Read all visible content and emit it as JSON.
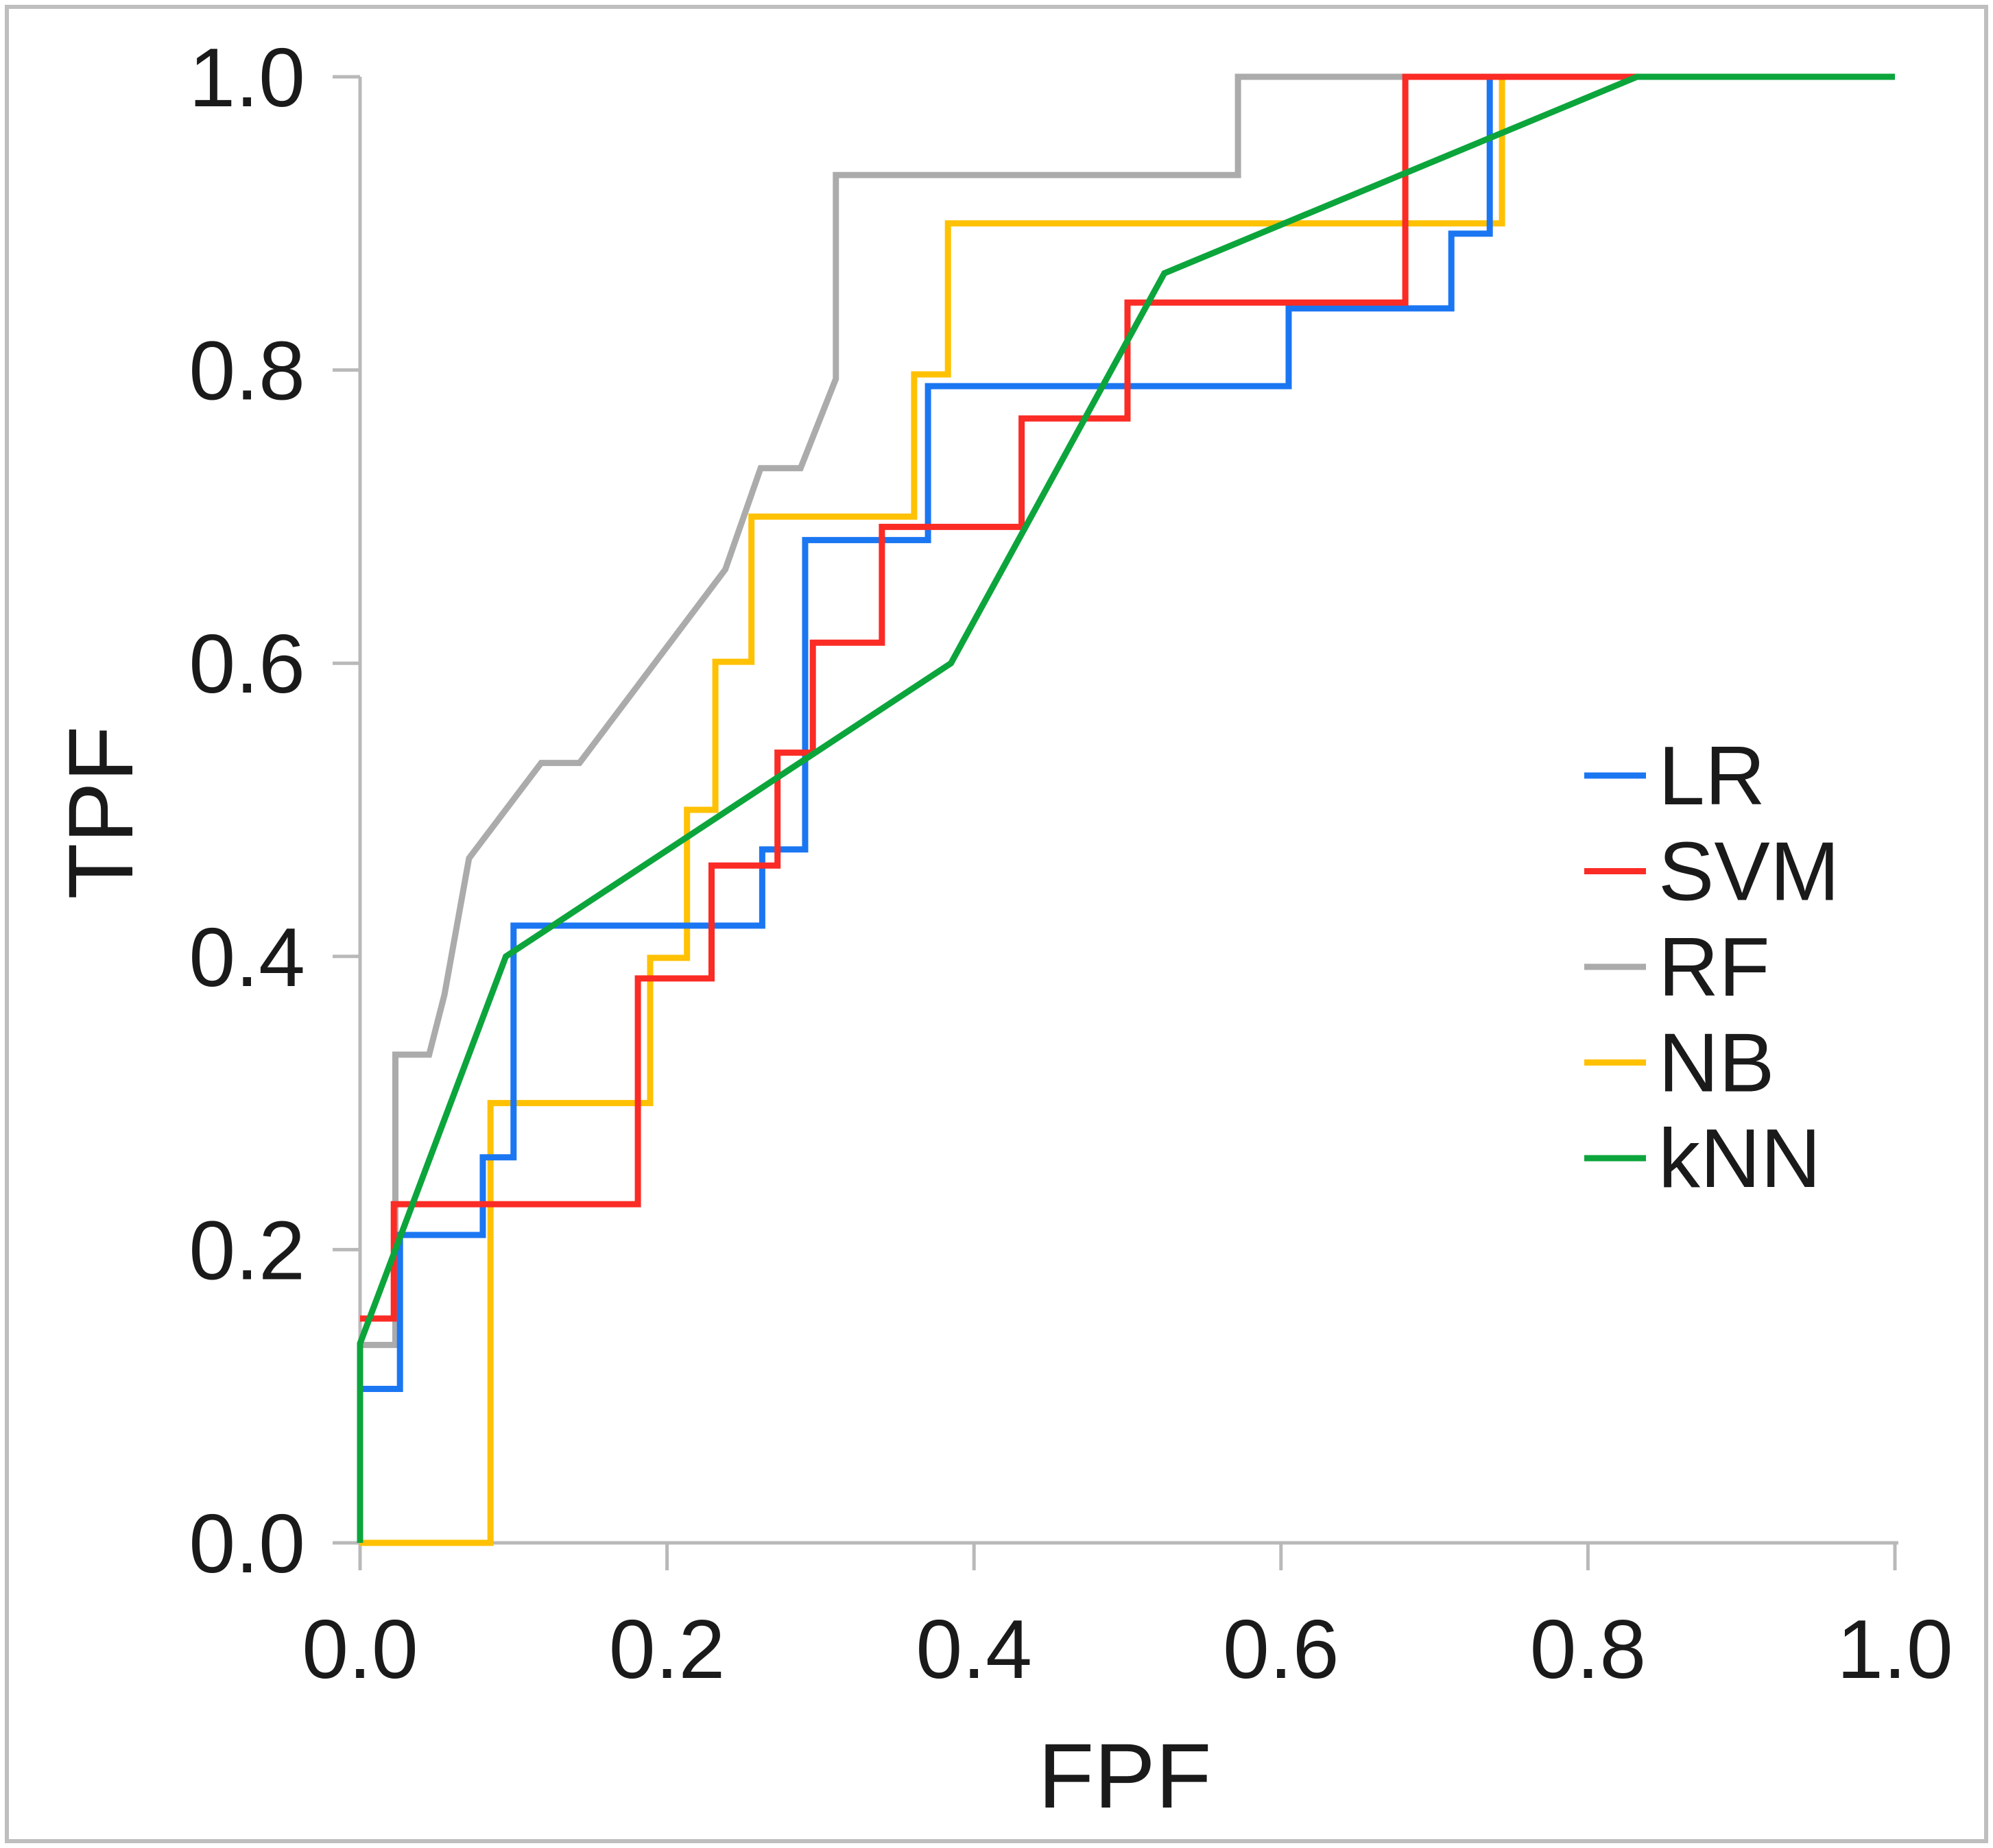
{
  "figure": {
    "background": "#ffffff",
    "frame_color": "#bfbfbf",
    "axis_color": "#b9b9b9",
    "text_color": "#1a1a1a"
  },
  "chart_data": {
    "type": "line",
    "title": "",
    "xlabel": "FPF",
    "ylabel": "TPF",
    "xlim": [
      0.0,
      1.0
    ],
    "ylim": [
      0.0,
      1.0
    ],
    "x_tick_labels": [
      "0.0",
      "0.2",
      "0.4",
      "0.6",
      "0.8",
      "1.0"
    ],
    "y_tick_labels": [
      "0.0",
      "0.2",
      "0.4",
      "0.6",
      "0.8",
      "1.0"
    ],
    "grid": false,
    "legend_position": "right-middle",
    "series": [
      {
        "name": "LR",
        "color": "#1b76f2",
        "points": [
          [
            0,
            0.105
          ],
          [
            0.026,
            0.105
          ],
          [
            0.026,
            0.21
          ],
          [
            0.08,
            0.21
          ],
          [
            0.08,
            0.263
          ],
          [
            0.1,
            0.263
          ],
          [
            0.1,
            0.421
          ],
          [
            0.262,
            0.421
          ],
          [
            0.262,
            0.473
          ],
          [
            0.29,
            0.473
          ],
          [
            0.29,
            0.684
          ],
          [
            0.37,
            0.684
          ],
          [
            0.37,
            0.789
          ],
          [
            0.605,
            0.789
          ],
          [
            0.605,
            0.842
          ],
          [
            0.711,
            0.842
          ],
          [
            0.711,
            0.893
          ],
          [
            0.736,
            0.893
          ],
          [
            0.736,
            1.0
          ],
          [
            1.0,
            1.0
          ]
        ]
      },
      {
        "name": "SVM",
        "color": "#fb2b25",
        "points": [
          [
            0,
            0.153
          ],
          [
            0.022,
            0.153
          ],
          [
            0.022,
            0.231
          ],
          [
            0.181,
            0.231
          ],
          [
            0.181,
            0.385
          ],
          [
            0.229,
            0.385
          ],
          [
            0.229,
            0.462
          ],
          [
            0.272,
            0.462
          ],
          [
            0.272,
            0.539
          ],
          [
            0.295,
            0.539
          ],
          [
            0.295,
            0.614
          ],
          [
            0.34,
            0.614
          ],
          [
            0.34,
            0.693
          ],
          [
            0.431,
            0.693
          ],
          [
            0.431,
            0.767
          ],
          [
            0.5,
            0.767
          ],
          [
            0.5,
            0.846
          ],
          [
            0.681,
            0.846
          ],
          [
            0.681,
            1.0
          ],
          [
            1.0,
            1.0
          ]
        ]
      },
      {
        "name": "RF",
        "color": "#ababab",
        "points": [
          [
            0,
            0.135
          ],
          [
            0.023,
            0.135
          ],
          [
            0.023,
            0.333
          ],
          [
            0.045,
            0.333
          ],
          [
            0.055,
            0.374
          ],
          [
            0.071,
            0.467
          ],
          [
            0.118,
            0.532
          ],
          [
            0.143,
            0.532
          ],
          [
            0.238,
            0.664
          ],
          [
            0.261,
            0.733
          ],
          [
            0.287,
            0.733
          ],
          [
            0.31,
            0.794
          ],
          [
            0.31,
            0.933
          ],
          [
            0.572,
            0.933
          ],
          [
            0.572,
            1.0
          ],
          [
            1.0,
            1.0
          ]
        ]
      },
      {
        "name": "NB",
        "color": "#ffc103",
        "points": [
          [
            0,
            0
          ],
          [
            0.085,
            0
          ],
          [
            0.085,
            0.3
          ],
          [
            0.189,
            0.3
          ],
          [
            0.189,
            0.399
          ],
          [
            0.213,
            0.399
          ],
          [
            0.213,
            0.5
          ],
          [
            0.2315,
            0.5
          ],
          [
            0.2315,
            0.601
          ],
          [
            0.255,
            0.601
          ],
          [
            0.255,
            0.7
          ],
          [
            0.361,
            0.7
          ],
          [
            0.361,
            0.797
          ],
          [
            0.383,
            0.797
          ],
          [
            0.383,
            0.9
          ],
          [
            0.744,
            0.9
          ],
          [
            0.744,
            1.0
          ],
          [
            1.0,
            1.0
          ]
        ]
      },
      {
        "name": "kNN",
        "color": "#0ca53c",
        "points": [
          [
            0,
            0
          ],
          [
            0,
            0.136
          ],
          [
            0.095,
            0.4
          ],
          [
            0.385,
            0.6
          ],
          [
            0.524,
            0.866
          ],
          [
            0.832,
            1.0
          ],
          [
            1.0,
            1.0
          ]
        ]
      }
    ]
  }
}
